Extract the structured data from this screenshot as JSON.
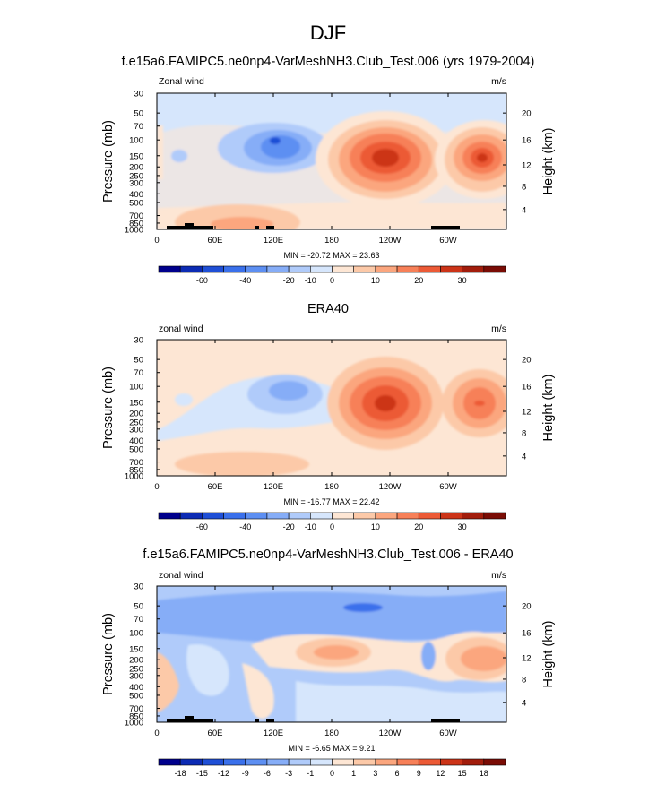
{
  "figure": {
    "title": "DJF"
  },
  "colors": {
    "model": [
      "#00008c",
      "#0c2bb4",
      "#1f4fd6",
      "#3a70eb",
      "#5d8ff2",
      "#86adf7",
      "#b0cbfa",
      "#d6e6fc",
      "#fde6d4",
      "#fcc9a8",
      "#fba67e",
      "#f78058",
      "#ec5a36",
      "#cc3418",
      "#a21d0c",
      "#7a0c05"
    ],
    "diff": [
      "#00008c",
      "#0c2bb4",
      "#1f4fd6",
      "#3a70eb",
      "#5d8ff2",
      "#86adf7",
      "#b0cbfa",
      "#d6e6fc",
      "#fde6d4",
      "#fcc9a8",
      "#fba67e",
      "#f78058",
      "#ec5a36",
      "#cc3418",
      "#a21d0c",
      "#7a0c05"
    ],
    "topography": "#000000"
  },
  "chart_data": [
    {
      "type": "heatmap",
      "title": "f.e15a6.FAMIPC5.ne0np4-VarMeshNH3.Club_Test.006 (yrs 1979-2004)",
      "left_label": "Zonal wind",
      "right_label": "m/s",
      "ylabel": "Pressure (mb)",
      "y2label": "Height (km)",
      "xticks": [
        "0",
        "60E",
        "120E",
        "180",
        "120W",
        "60W"
      ],
      "yticks": [
        "30",
        "50",
        "70",
        "100",
        "150",
        "200",
        "250",
        "300",
        "400",
        "500",
        "700",
        "850",
        "1000"
      ],
      "y2ticks": [
        "20",
        "16",
        "12",
        "8",
        "4"
      ],
      "stats": "MIN = -20.72  MAX =  23.63",
      "min": -20.72,
      "max": 23.63,
      "colorbar_labels": [
        "-60",
        "-40",
        "-20",
        "-10",
        "0",
        "10",
        "20",
        "30"
      ],
      "contour_levels": [
        -70,
        -60,
        -50,
        -40,
        -30,
        -20,
        -15,
        -10,
        -5,
        0,
        5,
        10,
        15,
        20,
        25,
        30,
        35
      ],
      "features": [
        {
          "lon": 122,
          "p": 120,
          "value": -20.72
        },
        {
          "lon": 252,
          "p": 180,
          "value": 23.63
        },
        {
          "lon": 335,
          "p": 180,
          "value": 19
        },
        {
          "lon": 90,
          "p": 850,
          "value": 6
        }
      ]
    },
    {
      "type": "heatmap",
      "title": "ERA40",
      "left_label": "zonal wind",
      "right_label": "m/s",
      "ylabel": "Pressure (mb)",
      "y2label": "Height (km)",
      "xticks": [
        "0",
        "60E",
        "120E",
        "180",
        "120W",
        "60W"
      ],
      "yticks": [
        "30",
        "50",
        "70",
        "100",
        "150",
        "200",
        "250",
        "300",
        "400",
        "500",
        "700",
        "850",
        "1000"
      ],
      "y2ticks": [
        "20",
        "16",
        "12",
        "8",
        "4"
      ],
      "stats": "MIN = -16.77  MAX =  22.42",
      "min": -16.77,
      "max": 22.42,
      "colorbar_labels": [
        "-60",
        "-40",
        "-20",
        "-10",
        "0",
        "10",
        "20",
        "30"
      ],
      "contour_levels": [
        -70,
        -60,
        -50,
        -40,
        -30,
        -20,
        -15,
        -10,
        -5,
        0,
        5,
        10,
        15,
        20,
        25,
        30,
        35
      ],
      "features": [
        {
          "lon": 125,
          "p": 110,
          "value": -16.77
        },
        {
          "lon": 240,
          "p": 180,
          "value": 22.42
        },
        {
          "lon": 330,
          "p": 180,
          "value": 17
        }
      ]
    },
    {
      "type": "heatmap",
      "title": "f.e15a6.FAMIPC5.ne0np4-VarMeshNH3.Club_Test.006 - ERA40",
      "left_label": "zonal wind",
      "right_label": "m/s",
      "ylabel": "Pressure (mb)",
      "y2label": "Height (km)",
      "xticks": [
        "0",
        "60E",
        "120E",
        "180",
        "120W",
        "60W"
      ],
      "yticks": [
        "30",
        "50",
        "70",
        "100",
        "150",
        "200",
        "250",
        "300",
        "400",
        "500",
        "700",
        "850",
        "1000"
      ],
      "y2ticks": [
        "20",
        "16",
        "12",
        "8",
        "4"
      ],
      "stats": "MIN = -6.65  MAX =  9.21",
      "min": -6.65,
      "max": 9.21,
      "colorbar_labels": [
        "-18",
        "-15",
        "-12",
        "-9",
        "-6",
        "-3",
        "-1",
        "0",
        "1",
        "3",
        "6",
        "9",
        "12",
        "15",
        "18"
      ],
      "contour_levels": [
        -21,
        -18,
        -15,
        -12,
        -9,
        -6,
        -3,
        -1,
        0,
        1,
        3,
        6,
        9,
        12,
        15,
        18,
        21
      ],
      "features": [
        {
          "lon": 220,
          "p": 55,
          "value": -6.65
        },
        {
          "lon": 350,
          "p": 200,
          "value": 9.21
        },
        {
          "lon": 10,
          "p": 300,
          "value": 5
        }
      ]
    }
  ]
}
